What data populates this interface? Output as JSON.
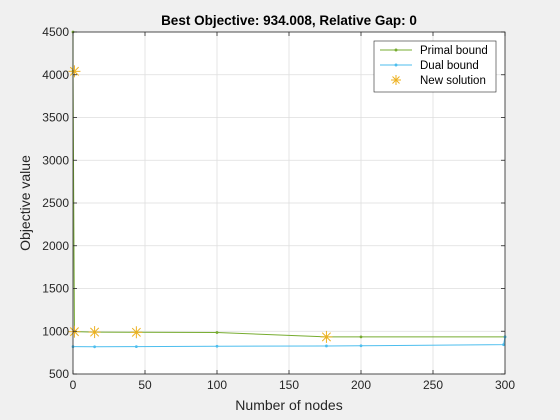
{
  "chart_data": {
    "type": "line",
    "title": "Best Objective: 934.008, Relative Gap: 0",
    "xlabel": "Number of nodes",
    "ylabel": "Objective value",
    "xlim": [
      0,
      300
    ],
    "ylim": [
      500,
      4500
    ],
    "xticks": [
      0,
      50,
      100,
      150,
      200,
      250,
      300
    ],
    "yticks": [
      500,
      1000,
      1500,
      2000,
      2500,
      3000,
      3500,
      4000,
      4500
    ],
    "grid": true,
    "legend_position": "top-right",
    "colors": {
      "primal": "#77AC30",
      "dual": "#4DBEEE",
      "new_solution": "#EDB120"
    },
    "series": [
      {
        "name": "Primal bound",
        "x": [
          0,
          0,
          1,
          15,
          44,
          100,
          176,
          200,
          300
        ],
        "y": [
          4500,
          4040,
          995,
          990,
          988,
          985,
          934.008,
          934.008,
          934.008
        ]
      },
      {
        "name": "Dual bound",
        "x": [
          0,
          15,
          44,
          100,
          176,
          200,
          299,
          300
        ],
        "y": [
          820,
          818,
          820,
          825,
          828,
          830,
          843,
          934.008
        ]
      },
      {
        "name": "New solution",
        "marker": "asterisk",
        "x": [
          1,
          1,
          15,
          44,
          176
        ],
        "y": [
          4040,
          995,
          990,
          988,
          934.008
        ]
      }
    ]
  }
}
